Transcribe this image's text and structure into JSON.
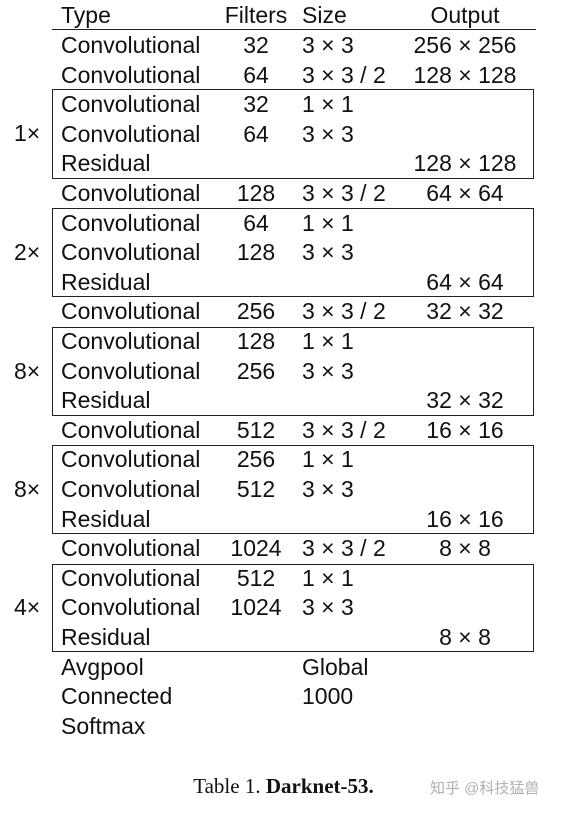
{
  "header": {
    "type": "Type",
    "filters": "Filters",
    "size": "Size",
    "output": "Output"
  },
  "rows": [
    {
      "type": "Convolutional",
      "filters": "32",
      "size": "3 × 3",
      "output": "256 × 256"
    },
    {
      "type": "Convolutional",
      "filters": "64",
      "size": "3 × 3 / 2",
      "output": "128 × 128"
    },
    {
      "type": "Convolutional",
      "filters": "32",
      "size": "1 × 1",
      "output": ""
    },
    {
      "type": "Convolutional",
      "filters": "64",
      "size": "3 × 3",
      "output": ""
    },
    {
      "type": "Residual",
      "filters": "",
      "size": "",
      "output": "128 × 128"
    },
    {
      "type": "Convolutional",
      "filters": "128",
      "size": "3 × 3 / 2",
      "output": "64 × 64"
    },
    {
      "type": "Convolutional",
      "filters": "64",
      "size": "1 × 1",
      "output": ""
    },
    {
      "type": "Convolutional",
      "filters": "128",
      "size": "3 × 3",
      "output": ""
    },
    {
      "type": "Residual",
      "filters": "",
      "size": "",
      "output": "64 × 64"
    },
    {
      "type": "Convolutional",
      "filters": "256",
      "size": "3 × 3 / 2",
      "output": "32 × 32"
    },
    {
      "type": "Convolutional",
      "filters": "128",
      "size": "1 × 1",
      "output": ""
    },
    {
      "type": "Convolutional",
      "filters": "256",
      "size": "3 × 3",
      "output": ""
    },
    {
      "type": "Residual",
      "filters": "",
      "size": "",
      "output": "32 × 32"
    },
    {
      "type": "Convolutional",
      "filters": "512",
      "size": "3 × 3 / 2",
      "output": "16 × 16"
    },
    {
      "type": "Convolutional",
      "filters": "256",
      "size": "1 × 1",
      "output": ""
    },
    {
      "type": "Convolutional",
      "filters": "512",
      "size": "3 × 3",
      "output": ""
    },
    {
      "type": "Residual",
      "filters": "",
      "size": "",
      "output": "16 × 16"
    },
    {
      "type": "Convolutional",
      "filters": "1024",
      "size": "3 × 3 / 2",
      "output": "8 × 8"
    },
    {
      "type": "Convolutional",
      "filters": "512",
      "size": "1 × 1",
      "output": ""
    },
    {
      "type": "Convolutional",
      "filters": "1024",
      "size": "3 × 3",
      "output": ""
    },
    {
      "type": "Residual",
      "filters": "",
      "size": "",
      "output": "8 × 8"
    },
    {
      "type": "Avgpool",
      "filters": "",
      "size": "Global",
      "output": ""
    },
    {
      "type": "Connected",
      "filters": "",
      "size": "1000",
      "output": ""
    },
    {
      "type": "Softmax",
      "filters": "",
      "size": "",
      "output": ""
    }
  ],
  "blocks": [
    {
      "multiplier": "1×"
    },
    {
      "multiplier": "2×"
    },
    {
      "multiplier": "8×"
    },
    {
      "multiplier": "8×"
    },
    {
      "multiplier": "4×"
    }
  ],
  "caption": {
    "prefix": "Table 1. ",
    "bold": "Darknet-53."
  },
  "watermark": "知乎 @科技猛兽"
}
